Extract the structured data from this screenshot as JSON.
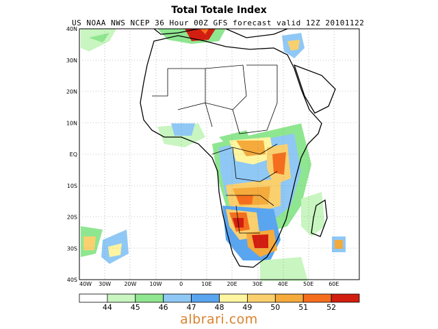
{
  "title": "Total Totale Index",
  "subtitle": "US NOAA NWS NCEP 36 Hour 00Z GFS forecast valid 12Z 20101122",
  "watermark": "albrari.com",
  "map": {
    "lat_labels": [
      "40N",
      "30N",
      "20N",
      "10N",
      "EQ",
      "10S",
      "20S",
      "30S",
      "40S"
    ],
    "lon_labels": [
      "40W",
      "30W",
      "20W",
      "10W",
      "0",
      "10E",
      "20E",
      "30E",
      "40E",
      "50E",
      "60E"
    ]
  },
  "colorbar": {
    "colors": [
      "#ffffff",
      "#c8f5c0",
      "#8fe690",
      "#8fc8f5",
      "#5aa5f0",
      "#fff5a0",
      "#fad06e",
      "#f5aa3c",
      "#f56e1e",
      "#d21e10"
    ],
    "labels": [
      "44",
      "45",
      "46",
      "47",
      "48",
      "49",
      "50",
      "51",
      "52"
    ]
  }
}
